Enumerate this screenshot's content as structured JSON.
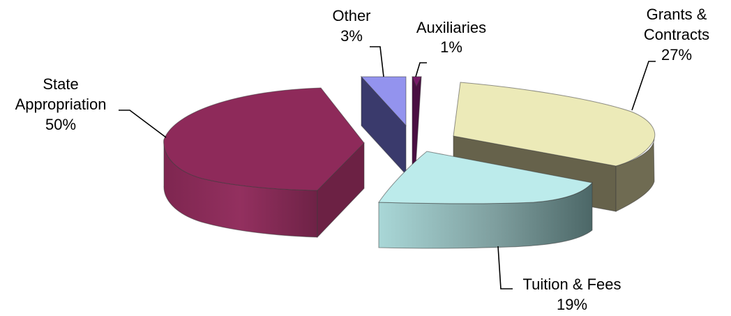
{
  "chart_data": {
    "type": "pie",
    "title": "",
    "slices": [
      {
        "label_lines": [
          "Grants &",
          "Contracts"
        ],
        "percent_text": "27%",
        "value": 27,
        "color": "#ECEAB8",
        "side_color": "#6F6B52"
      },
      {
        "label_lines": [
          "Tuition & Fees"
        ],
        "percent_text": "19%",
        "value": 19,
        "color": "#BCEBEB",
        "side_color": "#4E6A6A"
      },
      {
        "label_lines": [
          "State",
          "Appropriation"
        ],
        "percent_text": "50%",
        "value": 50,
        "color": "#8E2A5A",
        "side_color": "#6E2246"
      },
      {
        "label_lines": [
          "Other"
        ],
        "percent_text": "3%",
        "value": 3,
        "color": "#9393EE",
        "side_color": "#3A3A6C"
      },
      {
        "label_lines": [
          "Auxiliaries"
        ],
        "percent_text": "1%",
        "value": 1,
        "color": "#7A1A6A",
        "side_color": "#4A0F42"
      }
    ]
  }
}
